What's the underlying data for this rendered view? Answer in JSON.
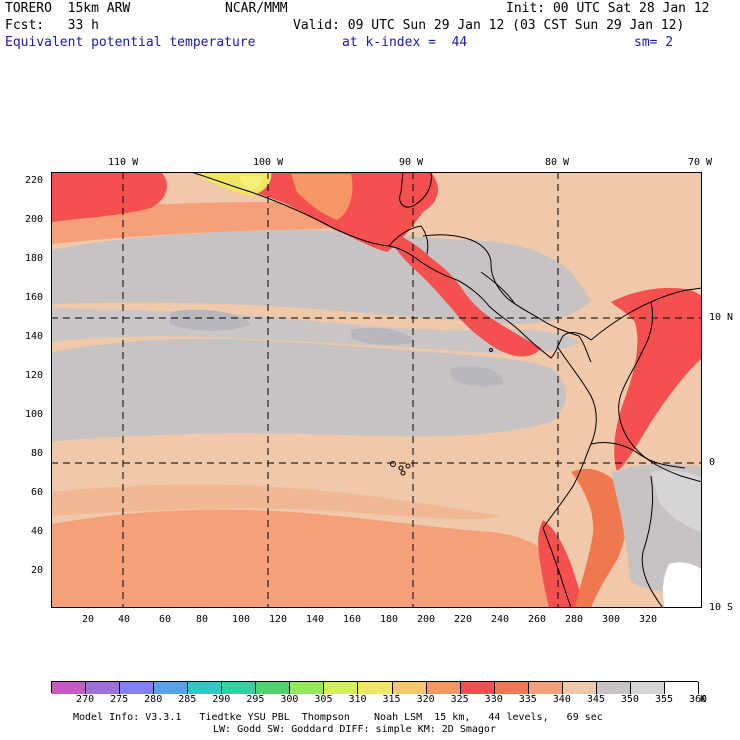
{
  "header": {
    "run": "TORERO  15km ARW",
    "center": "NCAR/MMM",
    "init": "Init: 00 UTC Sat 28 Jan 12",
    "fcst": "Fcst:   33 h",
    "valid": "Valid: 09 UTC Sun 29 Jan 12 (03 CST Sun 29 Jan 12)",
    "field": "Equivalent potential temperature",
    "level": "at k-index =  44",
    "smooth": "sm= 2"
  },
  "axes": {
    "lon_labels": [
      "110 W",
      "100 W",
      "90 W",
      "80 W",
      "70 W"
    ],
    "lat_labels": [
      "10 N",
      "0",
      "10 S"
    ],
    "y_ticks": [
      "220",
      "200",
      "180",
      "160",
      "140",
      "120",
      "100",
      "80",
      "60",
      "40",
      "20"
    ],
    "x_ticks": [
      "20",
      "40",
      "60",
      "80",
      "100",
      "120",
      "140",
      "160",
      "180",
      "200",
      "220",
      "240",
      "260",
      "280",
      "300",
      "320"
    ]
  },
  "colorbar": {
    "labels": [
      "270",
      "275",
      "280",
      "285",
      "290",
      "295",
      "300",
      "305",
      "310",
      "315",
      "320",
      "325",
      "330",
      "335",
      "340",
      "345",
      "350",
      "355",
      "360",
      "K"
    ],
    "colors": [
      "#c85ac8",
      "#a070d8",
      "#8080f0",
      "#5aa0e6",
      "#32c8c8",
      "#32d2a0",
      "#50d26e",
      "#96e65a",
      "#d2f05a",
      "#f0e664",
      "#f5c86e",
      "#f59664",
      "#f55050",
      "#f07850",
      "#f5a07a",
      "#f0c8aa",
      "#c8c3c3",
      "#d7d4d4",
      "#ffffff"
    ]
  },
  "footer": {
    "line1": "Model Info: V3.3.1   Tiedtke YSU PBL  Thompson    Noah LSM  15 km,   44 levels,   69 sec",
    "line2": "LW: Godd SW: Goddard DIFF: simple KM: 2D Smagor"
  }
}
